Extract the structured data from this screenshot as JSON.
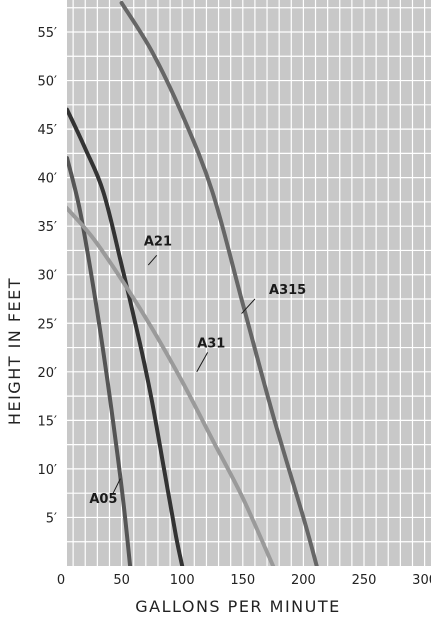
{
  "chart_data": {
    "type": "line",
    "xlabel": "GALLONS PER MINUTE",
    "ylabel": "HEIGHT IN FEET",
    "xlim": [
      0,
      300
    ],
    "ylim": [
      0,
      57.5
    ],
    "x_ticks": [
      0,
      50,
      100,
      150,
      200,
      250,
      300
    ],
    "x_tick_labels": [
      "0",
      "50",
      "100",
      "150",
      "200",
      "250",
      "300"
    ],
    "y_ticks": [
      5,
      10,
      15,
      20,
      25,
      30,
      35,
      40,
      45,
      50,
      55
    ],
    "y_tick_labels": [
      "5′",
      "10′",
      "15′",
      "20′",
      "25′",
      "30′",
      "35′",
      "40′",
      "45′",
      "50′",
      "55′"
    ],
    "grid": true,
    "plot_background": "#c8c8c8",
    "grid_color": "#ffffff",
    "series": [
      {
        "name": "A05",
        "color": "#555555",
        "x": [
          5,
          15,
          25,
          35,
          45,
          52,
          57
        ],
        "y": [
          42,
          37,
          30,
          22,
          13,
          6,
          0
        ],
        "label_at": [
          35,
          6.5
        ],
        "leader": [
          [
            49,
            9
          ],
          [
            43,
            7.5
          ]
        ]
      },
      {
        "name": "A21",
        "color": "#333333",
        "x": [
          5,
          20,
          35,
          50,
          65,
          75,
          85,
          95,
          100
        ],
        "y": [
          47,
          43,
          38.5,
          31,
          23,
          17,
          10,
          3,
          0
        ],
        "label_at": [
          80,
          33
        ],
        "leader": [
          [
            72,
            31
          ],
          [
            79,
            32
          ]
        ]
      },
      {
        "name": "A31",
        "color": "#9a9a9a",
        "x": [
          0,
          25,
          50,
          75,
          100,
          125,
          150,
          175
        ],
        "y": [
          37.5,
          34,
          29.5,
          24.5,
          19,
          13,
          7,
          0
        ],
        "label_at": [
          124,
          22.5
        ],
        "leader": [
          [
            112,
            20
          ],
          [
            121,
            22
          ]
        ]
      },
      {
        "name": "A315",
        "color": "#666666",
        "x": [
          50,
          75,
          100,
          125,
          150,
          175,
          200,
          211
        ],
        "y": [
          58,
          53,
          46.5,
          38.5,
          27,
          15.5,
          5,
          0
        ],
        "label_at": [
          187,
          28
        ],
        "leader": [
          [
            149,
            26
          ],
          [
            160,
            27.5
          ]
        ]
      }
    ]
  }
}
